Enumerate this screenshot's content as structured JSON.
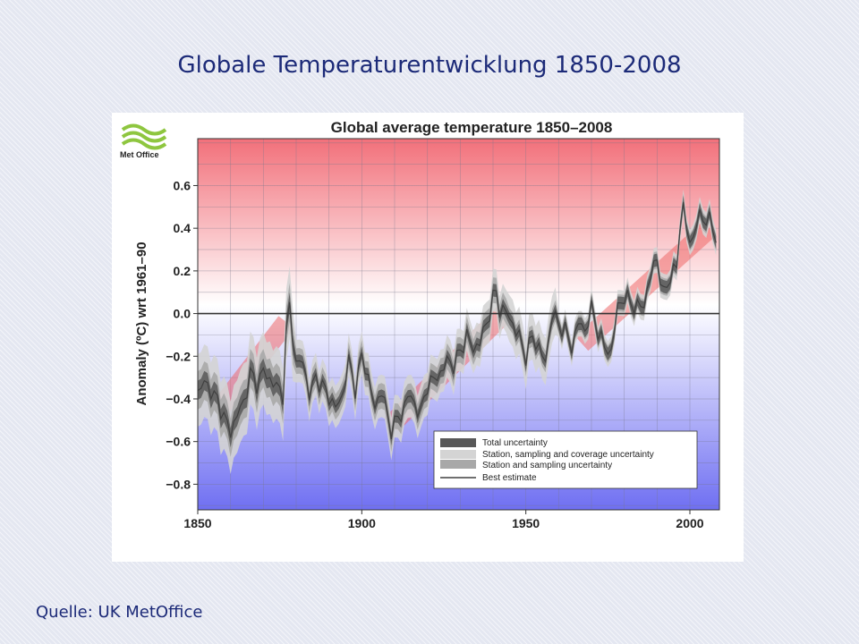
{
  "slide": {
    "title": "Globale Temperaturentwicklung 1850-2008",
    "source": "Quelle: UK MetOffice"
  },
  "logo": {
    "text": "Met Office",
    "color": "#8ec63f"
  },
  "chart_data": {
    "type": "line",
    "title": "Global average temperature 1850–2008",
    "ylabel": "Anomaly (ºC) wrt 1961–90",
    "xlabel": "",
    "xlim": [
      1850,
      2009
    ],
    "ylim": [
      -0.92,
      0.82
    ],
    "xticks": [
      1850,
      1900,
      1950,
      2000
    ],
    "yticks": [
      -0.8,
      -0.6,
      -0.4,
      -0.2,
      0.0,
      0.2,
      0.4,
      0.6
    ],
    "ytick_labels": [
      "−0.8",
      "−0.6",
      "−0.4",
      "−0.2",
      "0.0",
      "0.2",
      "0.4",
      "0.6"
    ],
    "grid": true,
    "legend_position": "bottom-right",
    "colors": {
      "total_uncertainty": "#585858",
      "coverage_uncertainty": "#d4d4d4",
      "sampling_uncertainty": "#a8a8a8",
      "best_estimate": "#404040",
      "trend_band": "#ee6a6a",
      "warm_bg": "#f2707a",
      "cool_bg": "#6f6ff2"
    },
    "legend": [
      {
        "label": "Total uncertainty",
        "key": "total"
      },
      {
        "label": "Station, sampling and coverage uncertainty",
        "key": "coverage"
      },
      {
        "label": "Station and sampling uncertainty",
        "key": "sampling"
      },
      {
        "label": "Best estimate",
        "key": "best"
      }
    ],
    "series": [
      {
        "name": "Best estimate",
        "anchors_x": [
          1850,
          1852,
          1854,
          1856,
          1858,
          1860,
          1862,
          1864,
          1866,
          1868,
          1870,
          1872,
          1874,
          1876,
          1877,
          1878,
          1880,
          1882,
          1884,
          1886,
          1888,
          1890,
          1892,
          1894,
          1896,
          1898,
          1900,
          1902,
          1904,
          1906,
          1908,
          1909,
          1910,
          1912,
          1914,
          1916,
          1918,
          1920,
          1922,
          1924,
          1926,
          1928,
          1930,
          1932,
          1934,
          1936,
          1938,
          1940,
          1941,
          1942,
          1944,
          1946,
          1948,
          1950,
          1952,
          1954,
          1956,
          1958,
          1960,
          1962,
          1964,
          1966,
          1968,
          1970,
          1972,
          1974,
          1976,
          1978,
          1980,
          1982,
          1984,
          1986,
          1988,
          1990,
          1992,
          1994,
          1996,
          1997,
          1998,
          2000,
          2002,
          2004,
          2006,
          2008
        ],
        "anchors_y": [
          -0.37,
          -0.32,
          -0.36,
          -0.41,
          -0.48,
          -0.56,
          -0.47,
          -0.42,
          -0.28,
          -0.33,
          -0.27,
          -0.31,
          -0.34,
          -0.38,
          -0.08,
          0.03,
          -0.24,
          -0.22,
          -0.38,
          -0.3,
          -0.34,
          -0.39,
          -0.44,
          -0.39,
          -0.22,
          -0.35,
          -0.2,
          -0.3,
          -0.45,
          -0.35,
          -0.5,
          -0.54,
          -0.51,
          -0.48,
          -0.38,
          -0.42,
          -0.47,
          -0.33,
          -0.31,
          -0.28,
          -0.22,
          -0.24,
          -0.18,
          -0.1,
          -0.17,
          -0.13,
          -0.05,
          0.07,
          0.1,
          0.02,
          0.01,
          -0.05,
          -0.11,
          -0.2,
          -0.11,
          -0.16,
          -0.23,
          0.0,
          -0.05,
          -0.08,
          -0.16,
          -0.04,
          -0.08,
          0.02,
          -0.08,
          -0.16,
          -0.18,
          0.03,
          0.08,
          0.05,
          0.03,
          0.04,
          0.18,
          0.26,
          0.08,
          0.18,
          0.22,
          0.4,
          0.52,
          0.3,
          0.44,
          0.44,
          0.45,
          0.33
        ]
      },
      {
        "name": "Trend segments",
        "segments": [
          {
            "x": [
              1856,
              1877
            ],
            "y": [
              -0.46,
              -0.04
            ]
          },
          {
            "x": [
              1909,
              1944
            ],
            "y": [
              -0.52,
              0.01
            ]
          },
          {
            "x": [
              1967,
              2006
            ],
            "y": [
              -0.14,
              0.4
            ]
          }
        ]
      }
    ]
  }
}
